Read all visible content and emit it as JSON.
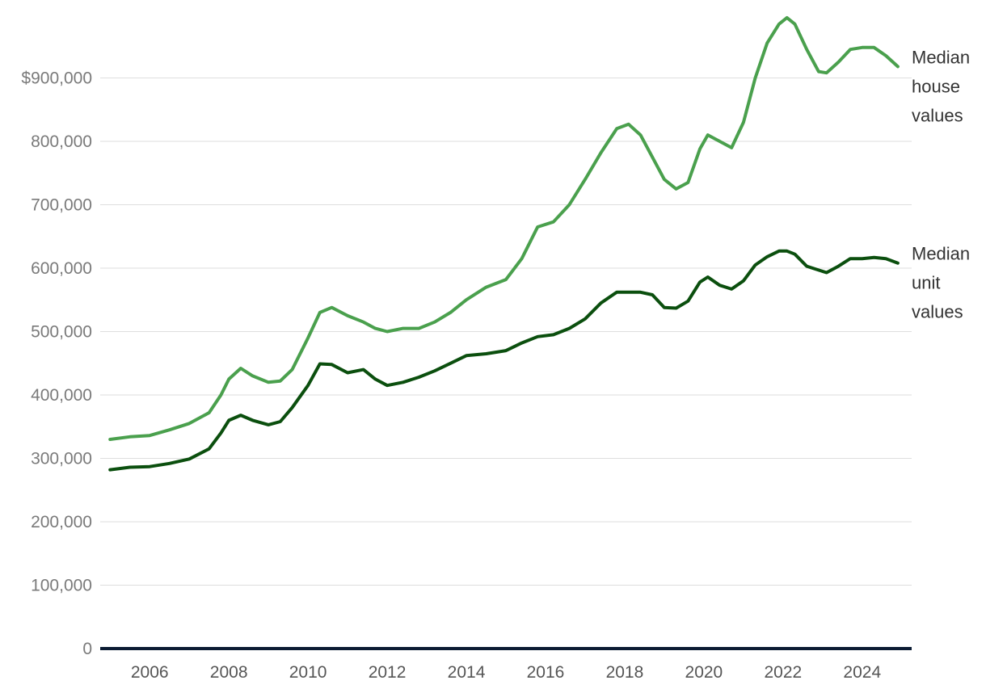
{
  "chart_data": {
    "type": "line",
    "title": "",
    "xlabel": "",
    "ylabel": "",
    "ylim": [
      0,
      1000000
    ],
    "xlim": [
      2004.75,
      2025.25
    ],
    "grid": true,
    "y_ticks": [
      {
        "value": 0,
        "label": "0"
      },
      {
        "value": 100000,
        "label": "100,000"
      },
      {
        "value": 200000,
        "label": "200,000"
      },
      {
        "value": 300000,
        "label": "300,000"
      },
      {
        "value": 400000,
        "label": "400,000"
      },
      {
        "value": 500000,
        "label": "500,000"
      },
      {
        "value": 600000,
        "label": "600,000"
      },
      {
        "value": 700000,
        "label": "700,000"
      },
      {
        "value": 800000,
        "label": "800,000"
      },
      {
        "value": 900000,
        "label": "$900,000"
      }
    ],
    "x_ticks": [
      {
        "value": 2006,
        "label": "2006"
      },
      {
        "value": 2008,
        "label": "2008"
      },
      {
        "value": 2010,
        "label": "2010"
      },
      {
        "value": 2012,
        "label": "2012"
      },
      {
        "value": 2014,
        "label": "2014"
      },
      {
        "value": 2016,
        "label": "2016"
      },
      {
        "value": 2018,
        "label": "2018"
      },
      {
        "value": 2020,
        "label": "2020"
      },
      {
        "value": 2022,
        "label": "2022"
      },
      {
        "value": 2024,
        "label": "2024"
      }
    ],
    "series": [
      {
        "name": "Median house values",
        "label_lines": [
          "Median",
          "house",
          "values"
        ],
        "color": "#4aa04d",
        "x": [
          2005.0,
          2005.5,
          2006.0,
          2006.5,
          2007.0,
          2007.5,
          2007.8,
          2008.0,
          2008.3,
          2008.6,
          2009.0,
          2009.3,
          2009.6,
          2010.0,
          2010.3,
          2010.6,
          2011.0,
          2011.4,
          2011.7,
          2012.0,
          2012.4,
          2012.8,
          2013.2,
          2013.6,
          2014.0,
          2014.5,
          2015.0,
          2015.4,
          2015.8,
          2016.2,
          2016.6,
          2017.0,
          2017.4,
          2017.8,
          2018.1,
          2018.4,
          2018.7,
          2019.0,
          2019.3,
          2019.6,
          2019.9,
          2020.1,
          2020.4,
          2020.7,
          2021.0,
          2021.3,
          2021.6,
          2021.9,
          2022.1,
          2022.3,
          2022.6,
          2022.9,
          2023.1,
          2023.4,
          2023.7,
          2024.0,
          2024.3,
          2024.6,
          2024.9
        ],
        "values": [
          330000,
          334000,
          336000,
          345000,
          355000,
          372000,
          400000,
          425000,
          442000,
          430000,
          420000,
          422000,
          440000,
          490000,
          530000,
          538000,
          525000,
          515000,
          505000,
          500000,
          505000,
          505000,
          515000,
          530000,
          550000,
          570000,
          582000,
          615000,
          665000,
          673000,
          700000,
          740000,
          782000,
          820000,
          827000,
          810000,
          775000,
          740000,
          725000,
          735000,
          788000,
          810000,
          800000,
          790000,
          830000,
          900000,
          955000,
          985000,
          995000,
          985000,
          945000,
          910000,
          908000,
          925000,
          945000,
          948000,
          948000,
          935000,
          918000
        ]
      },
      {
        "name": "Median unit values",
        "label_lines": [
          "Median",
          "unit",
          "values"
        ],
        "color": "#0b4f0e",
        "x": [
          2005.0,
          2005.5,
          2006.0,
          2006.5,
          2007.0,
          2007.5,
          2007.8,
          2008.0,
          2008.3,
          2008.6,
          2009.0,
          2009.3,
          2009.6,
          2010.0,
          2010.3,
          2010.6,
          2011.0,
          2011.4,
          2011.7,
          2012.0,
          2012.4,
          2012.8,
          2013.2,
          2013.6,
          2014.0,
          2014.5,
          2015.0,
          2015.4,
          2015.8,
          2016.2,
          2016.6,
          2017.0,
          2017.4,
          2017.8,
          2018.1,
          2018.4,
          2018.7,
          2019.0,
          2019.3,
          2019.6,
          2019.9,
          2020.1,
          2020.4,
          2020.7,
          2021.0,
          2021.3,
          2021.6,
          2021.9,
          2022.1,
          2022.3,
          2022.6,
          2022.9,
          2023.1,
          2023.4,
          2023.7,
          2024.0,
          2024.3,
          2024.6,
          2024.9
        ],
        "values": [
          282000,
          286000,
          287000,
          292000,
          299000,
          315000,
          340000,
          360000,
          368000,
          360000,
          353000,
          358000,
          380000,
          415000,
          449000,
          448000,
          435000,
          440000,
          425000,
          415000,
          420000,
          428000,
          438000,
          450000,
          462000,
          465000,
          470000,
          482000,
          492000,
          495000,
          505000,
          520000,
          545000,
          562000,
          562000,
          562000,
          558000,
          538000,
          537000,
          548000,
          578000,
          586000,
          573000,
          567000,
          580000,
          605000,
          618000,
          627000,
          627000,
          622000,
          603000,
          597000,
          593000,
          603000,
          615000,
          615000,
          617000,
          615000,
          608000
        ]
      }
    ]
  }
}
